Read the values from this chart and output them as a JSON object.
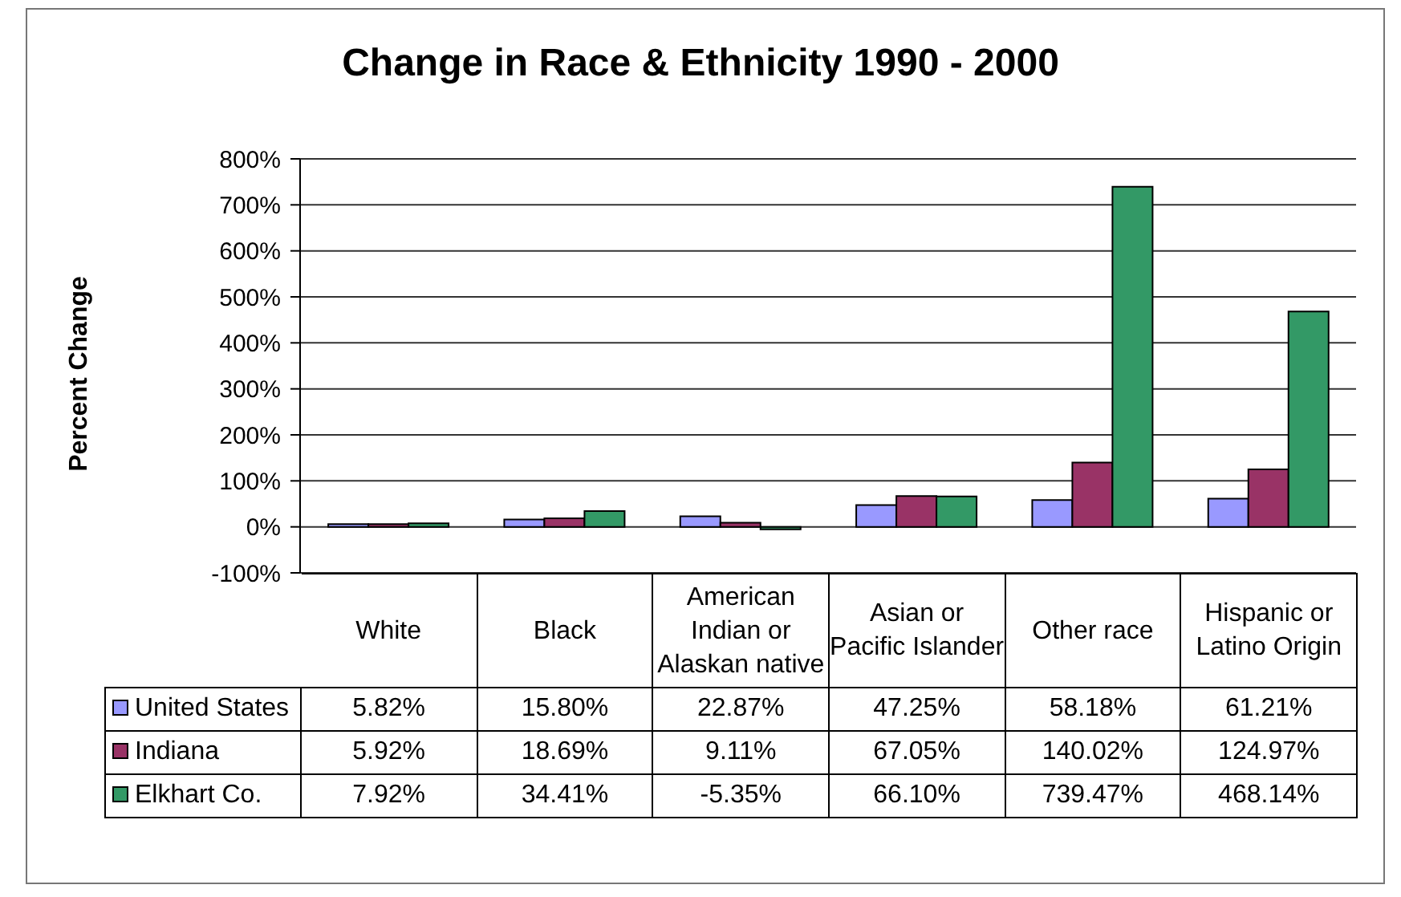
{
  "chart_data": {
    "type": "bar",
    "title": "Change in Race & Ethnicity 1990 - 2000",
    "ylabel": "Percent Change",
    "categories": [
      "White",
      "Black",
      "American Indian or Alaskan native",
      "Asian or Pacific Islander",
      "Other race",
      "Hispanic or Latino Origin"
    ],
    "series": [
      {
        "name": "United States",
        "color": "#9999ff",
        "values": [
          5.82,
          15.8,
          22.87,
          47.25,
          58.18,
          61.21
        ],
        "value_labels": [
          "5.82%",
          "15.80%",
          "22.87%",
          "47.25%",
          "58.18%",
          "61.21%"
        ]
      },
      {
        "name": "Indiana",
        "color": "#993366",
        "values": [
          5.92,
          18.69,
          9.11,
          67.05,
          140.02,
          124.97
        ],
        "value_labels": [
          "5.92%",
          "18.69%",
          "9.11%",
          "67.05%",
          "140.02%",
          "124.97%"
        ]
      },
      {
        "name": "Elkhart Co.",
        "color": "#339966",
        "values": [
          7.92,
          34.41,
          -5.35,
          66.1,
          739.47,
          468.14
        ],
        "value_labels": [
          "7.92%",
          "34.41%",
          "-5.35%",
          "66.10%",
          "739.47%",
          "468.14%"
        ]
      }
    ],
    "ylim": [
      -100,
      800
    ],
    "yticks": [
      {
        "value": -100,
        "label": "-100%"
      },
      {
        "value": 0,
        "label": "0%"
      },
      {
        "value": 100,
        "label": "100%"
      },
      {
        "value": 200,
        "label": "200%"
      },
      {
        "value": 300,
        "label": "300%"
      },
      {
        "value": 400,
        "label": "400%"
      },
      {
        "value": 500,
        "label": "500%"
      },
      {
        "value": 600,
        "label": "600%"
      },
      {
        "value": 700,
        "label": "700%"
      },
      {
        "value": 800,
        "label": "800%"
      }
    ],
    "grid": "y",
    "legend": "bottom"
  }
}
